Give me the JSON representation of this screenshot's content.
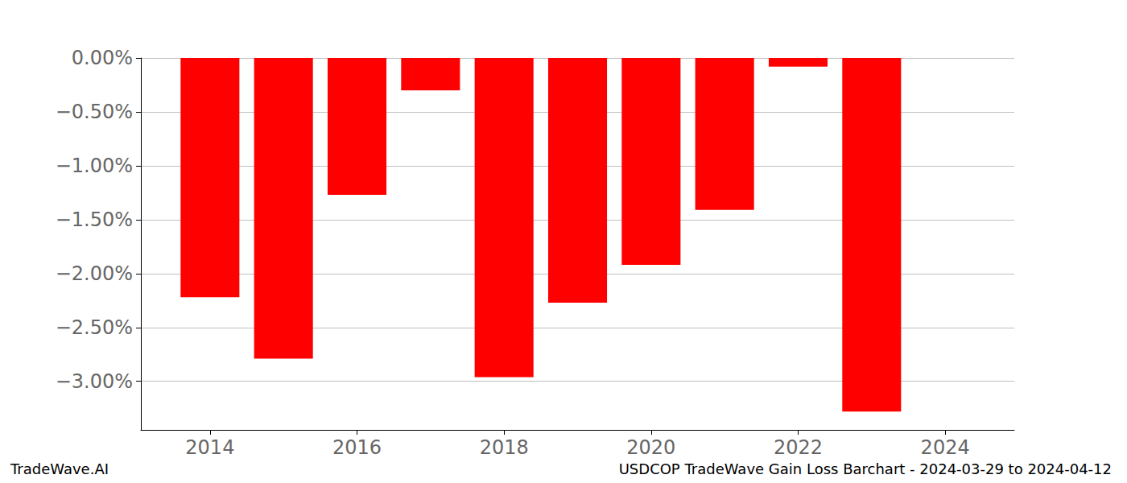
{
  "chart_data": {
    "type": "bar",
    "title": "USDCOP TradeWave Gain Loss Barchart - 2024-03-29 to 2024-04-12",
    "annotations": [
      "TradeWave.AI"
    ],
    "x": [
      2014,
      2015,
      2016,
      2017,
      2018,
      2019,
      2020,
      2021,
      2022,
      2023
    ],
    "values": [
      -2.22,
      -2.79,
      -1.27,
      -0.3,
      -2.96,
      -2.27,
      -1.92,
      -1.41,
      -0.08,
      -3.28
    ],
    "color": "#ff0000",
    "xlim": [
      2013.06,
      2024.94
    ],
    "xticks": [
      2014,
      2016,
      2018,
      2020,
      2022,
      2024
    ],
    "ylim": [
      -3.45,
      0
    ],
    "yticks": [
      {
        "value": 0,
        "label": "0.00%"
      },
      {
        "value": -0.5,
        "label": "−0.50%"
      },
      {
        "value": -1.0,
        "label": "−1.00%"
      },
      {
        "value": -1.5,
        "label": "−1.50%"
      },
      {
        "value": -2.0,
        "label": "−2.00%"
      },
      {
        "value": -2.5,
        "label": "−2.50%"
      },
      {
        "value": -3.0,
        "label": "−3.00%"
      }
    ],
    "grid": true
  }
}
